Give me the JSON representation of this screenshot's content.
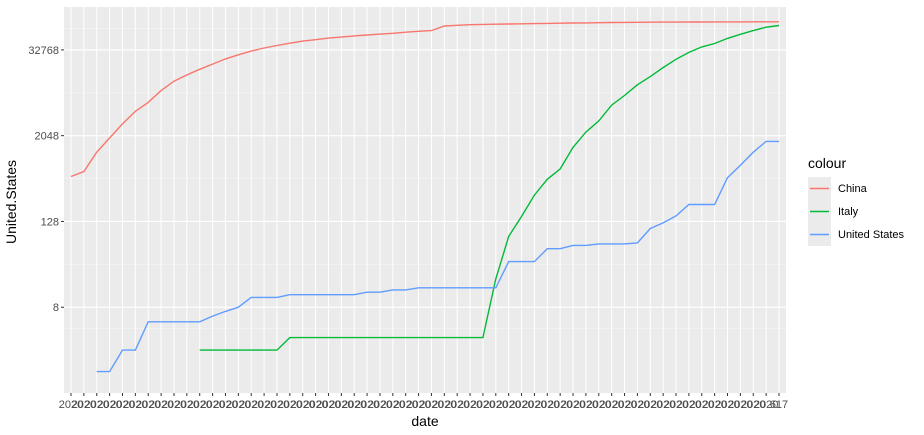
{
  "chart_data": {
    "type": "line",
    "xlabel": "date",
    "ylabel": "United.States",
    "y_scale": "log2",
    "yticks": [
      8,
      128,
      2048,
      32768
    ],
    "ytick_labels": [
      "8",
      "128",
      "2048",
      "32768"
    ],
    "ylim": [
      0.5,
      131072
    ],
    "x_tick_count": 56,
    "x": [
      0,
      1,
      2,
      3,
      4,
      5,
      6,
      7,
      8,
      9,
      10,
      11,
      12,
      13,
      14,
      15,
      16,
      17,
      18,
      19,
      20,
      21,
      22,
      23,
      24,
      25,
      26,
      27,
      28,
      29,
      30,
      31,
      32,
      33,
      34,
      35,
      36,
      37,
      38,
      39,
      40,
      41,
      42,
      43,
      44,
      45,
      46,
      47,
      48,
      49,
      50,
      51,
      52,
      53,
      54,
      55
    ],
    "x_tick_labels_visible": [
      "2020",
      "2020",
      "2020",
      "2020",
      "2020",
      "2020",
      "2020",
      "2020",
      "2020",
      "2020",
      "2020",
      "2020",
      "2020",
      "2020",
      "2020",
      "2020",
      "2020",
      "2020",
      "2020",
      "2020",
      "2020",
      "2020",
      "2020",
      "2020",
      "2020",
      "2020",
      "2020",
      "2020",
      "2020",
      "2020",
      "2020",
      "2020",
      "2020",
      "2020",
      "2020",
      "2020",
      "2020",
      "2020",
      "2020",
      "2020",
      "2020",
      "2020",
      "2020",
      "2020",
      "2020",
      "2020",
      "2020",
      "2020",
      "2020",
      "2020",
      "2020",
      "2020",
      "2020",
      "2020",
      "2020",
      "617"
    ],
    "grid": true,
    "legend_title": "colour",
    "legend_position": "right",
    "series": [
      {
        "name": "China",
        "color": "#F8766D",
        "values": [
          548,
          643,
          1200,
          1900,
          3000,
          4500,
          6000,
          8800,
          11900,
          14600,
          17500,
          20700,
          24500,
          28000,
          31500,
          34800,
          37800,
          40700,
          43500,
          45500,
          48000,
          49600,
          51500,
          53000,
          54500,
          56000,
          58000,
          59800,
          61100,
          71000,
          72600,
          73900,
          74600,
          75200,
          75700,
          76200,
          76700,
          77200,
          77700,
          78100,
          78500,
          78900,
          79300,
          79700,
          80000,
          80200,
          80400,
          80500,
          80700,
          80800,
          80900,
          81000,
          81100,
          81200,
          81200,
          81300
        ]
      },
      {
        "name": "Italy",
        "color": "#00BA38",
        "values": [
          null,
          null,
          null,
          null,
          null,
          null,
          null,
          null,
          null,
          null,
          2,
          2,
          2,
          2,
          2,
          2,
          2,
          3,
          3,
          3,
          3,
          3,
          3,
          3,
          3,
          3,
          3,
          3,
          3,
          3,
          3,
          3,
          3,
          20,
          79,
          150,
          300,
          500,
          700,
          1400,
          2300,
          3300,
          5500,
          7500,
          10600,
          13800,
          18500,
          24200,
          30200,
          36100,
          40300,
          47500,
          54300,
          61100,
          68200,
          72000
        ]
      },
      {
        "name": "United States",
        "color": "#619CFF",
        "values": [
          null,
          null,
          1,
          1,
          2,
          2,
          5,
          5,
          5,
          5,
          5,
          6,
          7,
          8,
          11,
          11,
          11,
          12,
          12,
          12,
          12,
          12,
          12,
          13,
          13,
          14,
          14,
          15,
          15,
          15,
          15,
          15,
          15,
          15,
          35,
          35,
          35,
          53,
          53,
          59,
          59,
          62,
          62,
          62,
          64,
          102,
          122,
          153,
          221,
          221,
          221,
          526,
          785,
          1200,
          1700,
          1700
        ]
      }
    ]
  }
}
